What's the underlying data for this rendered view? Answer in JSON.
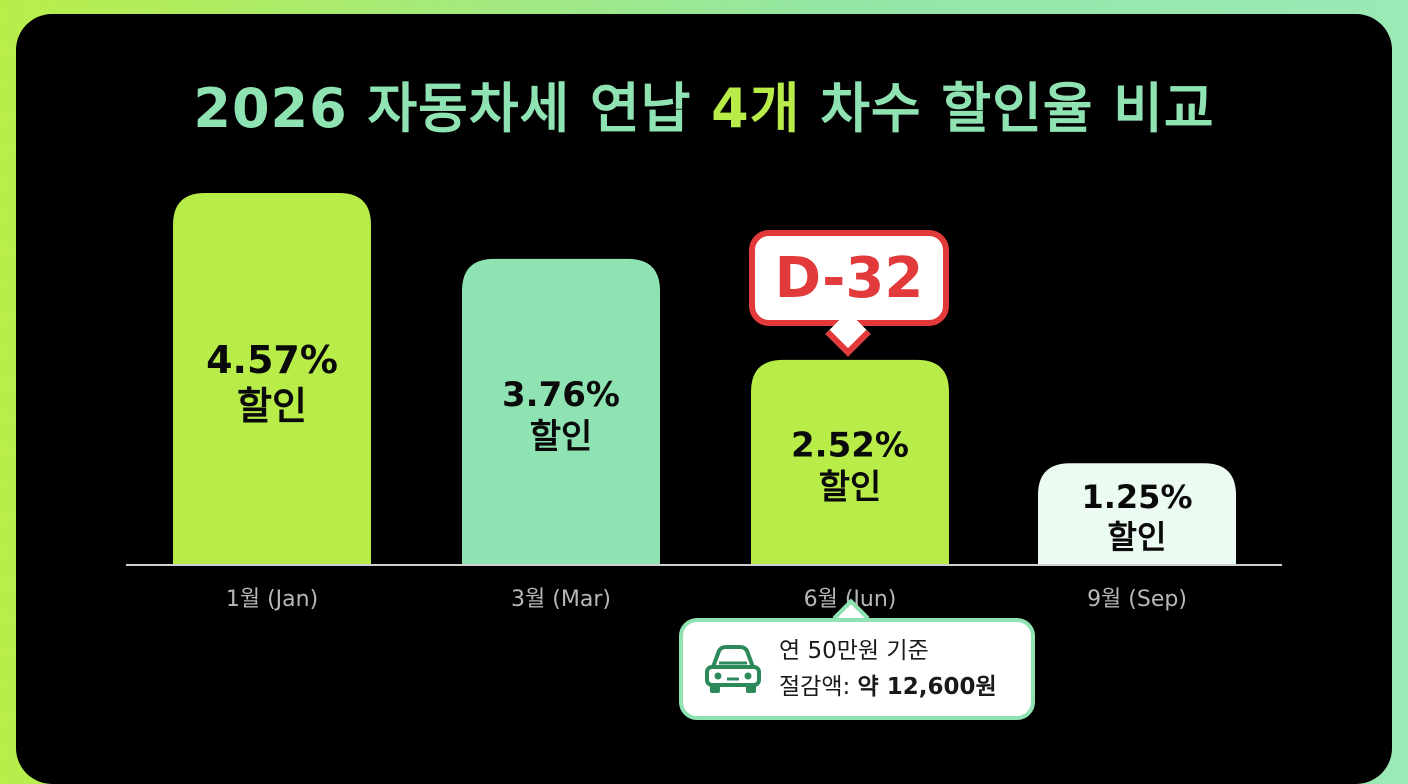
{
  "title": {
    "part1": "2026 자동차세 연납 ",
    "part2": "4개",
    "part3": " 차수 할인율 비교"
  },
  "chart_data": {
    "type": "bar",
    "title": "2026 자동차세 연납 4개 차수 할인율 비교",
    "categories": [
      "1월 (Jan)",
      "3월 (Mar)",
      "6월 (Jun)",
      "9월 (Sep)"
    ],
    "values": [
      4.57,
      3.76,
      2.52,
      1.25
    ],
    "value_labels": [
      "4.57%",
      "3.76%",
      "2.52%",
      "1.25%"
    ],
    "bar_suffix": "할인",
    "colors": [
      "#b8ec48",
      "#8fe3b2",
      "#b8ec48",
      "#ecfbf1"
    ],
    "ylim": [
      0,
      4.57
    ],
    "grid": false
  },
  "badge": {
    "text": "D-32",
    "color": "#e23a3a"
  },
  "callout": {
    "line1": "연 50만원 기준",
    "line2_label": "절감액: ",
    "line2_value": "약 12,600원",
    "icon": "car-icon"
  }
}
